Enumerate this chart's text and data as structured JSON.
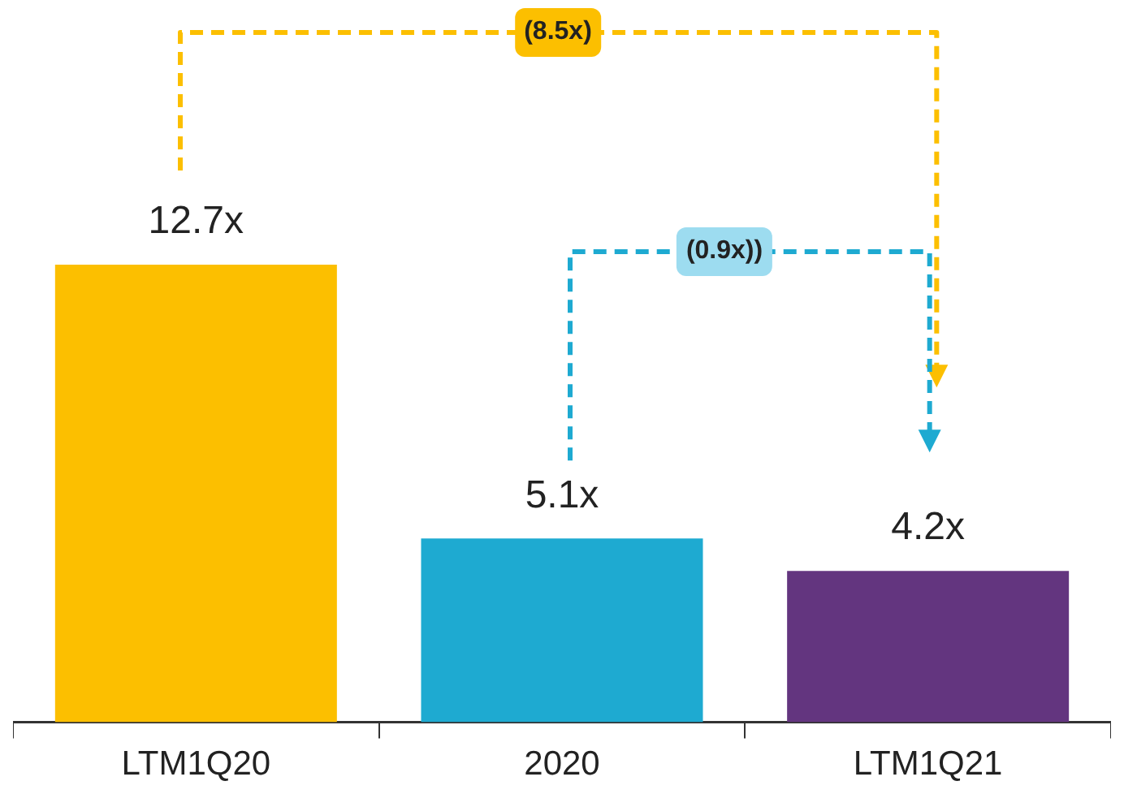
{
  "chart_data": {
    "type": "bar",
    "categories": [
      "LTM1Q20",
      "2020",
      "LTM1Q21"
    ],
    "values": [
      12.7,
      5.1,
      4.2
    ],
    "colors": [
      "#fcbf00",
      "#1eaad1",
      "#63357f"
    ],
    "value_labels": [
      "12.7x",
      "5.1x",
      "4.2x"
    ],
    "annotations": [
      "(8.5x)",
      "(0.9x))"
    ],
    "grid": false,
    "legend": false
  }
}
